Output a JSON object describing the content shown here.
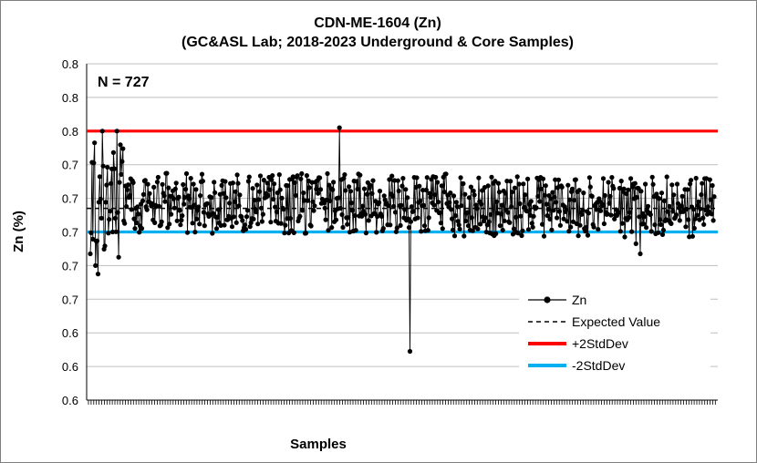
{
  "chart_data": {
    "type": "line",
    "title": "CDN-ME-1604 (Zn)",
    "subtitle": "(GC&ASL Lab; 2018-2023 Underground & Core Samples)",
    "xlabel": "Samples",
    "ylabel": "Zn (%)",
    "ylim": [
      0.6,
      0.8
    ],
    "y_ticks": [
      0.6,
      0.62,
      0.64,
      0.66,
      0.68,
      0.7,
      0.72,
      0.74,
      0.76,
      0.78,
      0.8
    ],
    "y_tick_labels": [
      "0.6",
      "0.6",
      "0.6",
      "0.7",
      "0.7",
      "0.7",
      "0.7",
      "0.7",
      "0.8",
      "0.8",
      "0.8"
    ],
    "annotation": "N = 727",
    "grid": true,
    "legend_position": "bottom-right",
    "n_samples": 727,
    "reference_lines": [
      {
        "name": "Expected Value",
        "value": 0.714,
        "color": "#000000",
        "style": "dashed"
      },
      {
        "name": "+2StdDev",
        "value": 0.76,
        "color": "#ff0000",
        "style": "solid"
      },
      {
        "name": "-2StdDev",
        "value": 0.7,
        "color": "#00b0f0",
        "style": "solid"
      }
    ],
    "series": [
      {
        "name": "Zn",
        "color": "#000000",
        "marker": "circle",
        "outliers": [
          {
            "sample": 6,
            "value": 0.68
          },
          {
            "sample": 9,
            "value": 0.675
          },
          {
            "sample": 14,
            "value": 0.76
          },
          {
            "sample": 31,
            "value": 0.76
          },
          {
            "sample": 33,
            "value": 0.685
          },
          {
            "sample": 26,
            "value": 0.7
          },
          {
            "sample": 290,
            "value": 0.762
          },
          {
            "sample": 372,
            "value": 0.629
          },
          {
            "sample": 635,
            "value": 0.693
          },
          {
            "sample": 640,
            "value": 0.687
          }
        ]
      }
    ],
    "legend": [
      {
        "label": "Zn",
        "color": "#000000",
        "style": "marker-line"
      },
      {
        "label": "Expected Value",
        "color": "#000000",
        "style": "dashed"
      },
      {
        "label": "+2StdDev",
        "color": "#ff0000",
        "style": "solid"
      },
      {
        "label": "-2StdDev",
        "color": "#00b0f0",
        "style": "solid"
      }
    ]
  }
}
